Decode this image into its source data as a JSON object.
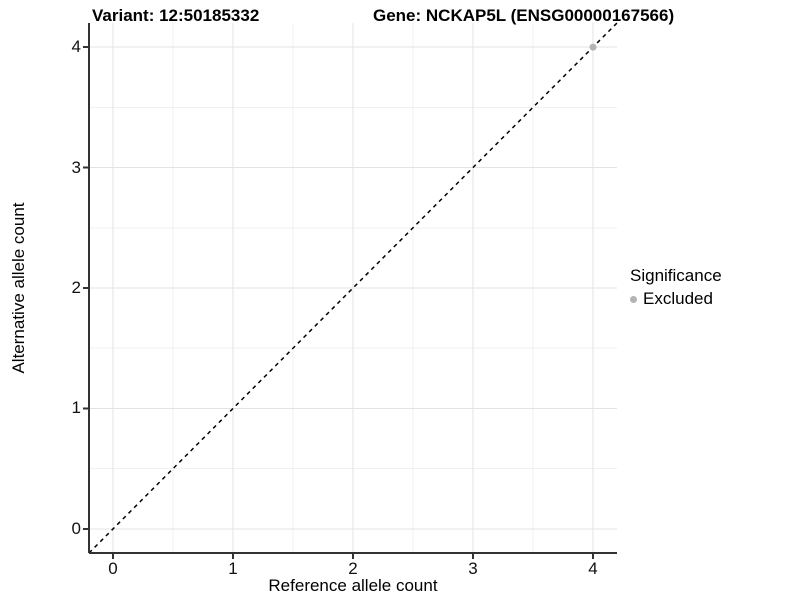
{
  "header": {
    "variant_title": "Variant: 12:50185332",
    "gene_title": "Gene: NCKAP5L (ENSG00000167566)"
  },
  "chart_data": {
    "type": "scatter",
    "xlabel": "Reference allele count",
    "ylabel": "Alternative allele count",
    "xlim": [
      -0.2,
      4.2
    ],
    "ylim": [
      -0.2,
      4.2
    ],
    "xticks": [
      0,
      1,
      2,
      3,
      4
    ],
    "yticks": [
      0,
      1,
      2,
      3,
      4
    ],
    "xticks_minor": [
      0.5,
      1.5,
      2.5,
      3.5
    ],
    "yticks_minor": [
      0.5,
      1.5,
      2.5,
      3.5
    ],
    "grid": "major+minor",
    "identity_line": {
      "style": "dashed",
      "color": "#000000",
      "from": [
        -0.2,
        -0.2
      ],
      "to": [
        4.2,
        4.2
      ]
    },
    "series": [
      {
        "name": "Excluded",
        "color": "#b4b4b4",
        "points": [
          [
            4,
            4
          ]
        ]
      }
    ],
    "legend": {
      "title": "Significance",
      "position": "right",
      "entries": [
        {
          "label": "Excluded",
          "color": "#b4b4b4"
        }
      ]
    }
  },
  "colors": {
    "background": "#ffffff",
    "grid_major": "#e3e3e3",
    "grid_minor": "#f1f1f1",
    "axis_line": "#333333",
    "tick_mark": "#333333",
    "tick_text": "#111111",
    "title_text": "#000000",
    "point": "#b4b4b4"
  }
}
